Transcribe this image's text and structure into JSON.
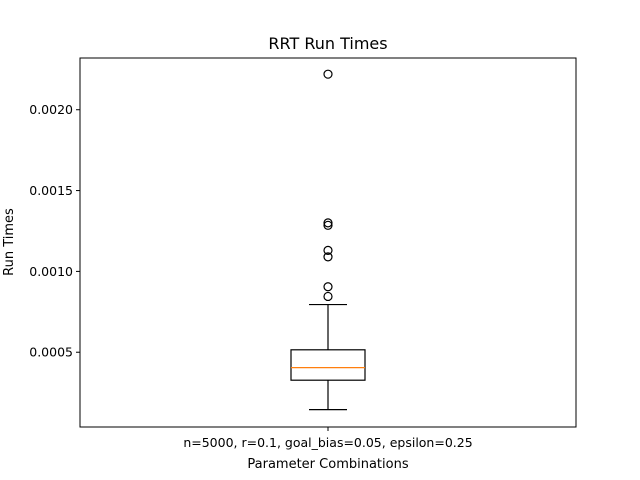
{
  "chart_data": {
    "type": "box",
    "title": "RRT Run Times",
    "xlabel": "Parameter Combinations",
    "ylabel": "Run Times",
    "categories": [
      "n=5000, r=0.1, goal_bias=0.05, epsilon=0.25"
    ],
    "ylim": [
      3.75e-05,
      0.00232
    ],
    "yticks": [
      0.0005,
      0.001,
      0.0015,
      0.002
    ],
    "ytick_labels": [
      "0.0005",
      "0.0010",
      "0.0015",
      "0.0020"
    ],
    "grid": false,
    "boxes": [
      {
        "whisker_low": 0.000145,
        "q1": 0.000327,
        "median": 0.000405,
        "q3": 0.000515,
        "whisker_high": 0.000795,
        "outliers": [
          0.000845,
          0.000905,
          0.00109,
          0.00113,
          0.001285,
          0.0013,
          0.00222
        ]
      }
    ],
    "colors": {
      "box": "#000000",
      "median": "#ff7f0e",
      "outlier": "#000000"
    }
  }
}
